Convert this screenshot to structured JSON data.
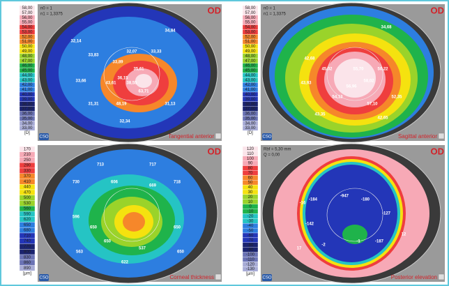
{
  "palette": [
    "#fbe4ea",
    "#f7a9b6",
    "#ef3e3e",
    "#f6872a",
    "#f5e20f",
    "#9ad32a",
    "#1fb34b",
    "#25c4c4",
    "#2d7ee0",
    "#2336b8",
    "#1b2470",
    "#6b73b5",
    "#a8acd6"
  ],
  "panels": [
    {
      "title": "Tangential anterior",
      "eye": "OD",
      "logo": "CSO",
      "info": [
        "n0 = 1",
        "n1 = 1,3375"
      ],
      "scale": [
        "58,00",
        "57,00",
        "56,00",
        "55,00",
        "54,00",
        "53,00",
        "52,00",
        "51,00",
        "50,00",
        "49,00",
        "48,00",
        "47,00",
        "46,00",
        "45,00",
        "44,00",
        "43,00",
        "42,00",
        "41,00",
        "40,00",
        "39,00",
        "38,00",
        "37,00",
        "36,00",
        "35,00",
        "34,00",
        "33,00"
      ],
      "unit": "[D]",
      "numbers": [
        "32,14",
        "33,83",
        "33,89",
        "35,61",
        "36,15",
        "32,07",
        "33,33",
        "43,61",
        "38,55",
        "63,71",
        "48,19",
        "31,31",
        "31,13",
        "32,34",
        "34,84",
        "33,66"
      ]
    },
    {
      "title": "Sagittal anterior",
      "eye": "OD",
      "logo": "CSO",
      "info": [
        "n0 = 1",
        "n1 = 1,3375"
      ],
      "scale": [
        "58,00",
        "57,00",
        "56,00",
        "55,00",
        "54,00",
        "53,00",
        "52,00",
        "51,00",
        "50,00",
        "49,00",
        "48,00",
        "47,00",
        "46,00",
        "45,00",
        "44,00",
        "43,00",
        "42,00",
        "41,00",
        "40,00",
        "39,00",
        "38,00",
        "37,00",
        "36,00",
        "35,00",
        "34,00",
        "33,00"
      ],
      "unit": "[D]",
      "numbers": [
        "34,68",
        "42,68",
        "43,93",
        "55,70",
        "45,02",
        "50,22",
        "58,02",
        "56,96",
        "54,13",
        "57,10",
        "52,35",
        "43,35",
        "42,65"
      ]
    },
    {
      "title": "Corneal thickness",
      "eye": "OD",
      "logo": "CSO",
      "info": [],
      "scale": [
        "170",
        "210",
        "250",
        "290",
        "330",
        "370",
        "410",
        "440",
        "470",
        "500",
        "530",
        "560",
        "590",
        "620",
        "650",
        "680",
        "710",
        "740",
        "770",
        "800",
        "830",
        "860",
        "890"
      ],
      "unit": "[µm]",
      "numbers": [
        "713",
        "717",
        "730",
        "718",
        "596",
        "650",
        "650",
        "563",
        "650",
        "606",
        "669",
        "650",
        "537",
        "622"
      ]
    },
    {
      "title": "Posterior elevation",
      "eye": "OD",
      "logo": "CSO",
      "info": [
        "Rbf = 5,30 mm",
        "Q = 0,00"
      ],
      "scale": [
        "120",
        "110",
        "100",
        "90",
        "80",
        "70",
        "60",
        "50",
        "40",
        "30",
        "20",
        "10",
        "0",
        "-10",
        "-20",
        "-30",
        "-40",
        "-50",
        "-60",
        "-70",
        "-80",
        "-90",
        "-100",
        "-110",
        "-120",
        "-130"
      ],
      "unit": "[µm]",
      "numbers": [
        "-947",
        "-184",
        "-180",
        "-127",
        "-142",
        "-2",
        "-187",
        "-16",
        "-1",
        "17",
        "12"
      ]
    }
  ]
}
